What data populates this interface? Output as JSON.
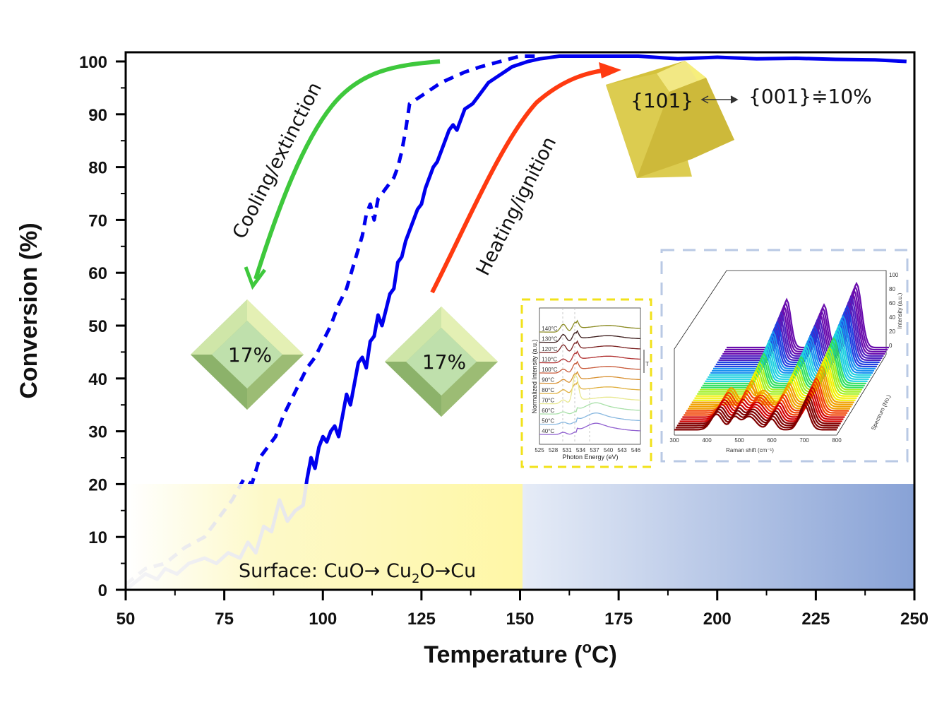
{
  "chart_data": {
    "type": "line",
    "title": "",
    "xlabel": "Temperature (°C)",
    "ylabel": "Conversion (%)",
    "xlim": [
      50,
      250
    ],
    "ylim": [
      0,
      100
    ],
    "xticks": [
      50,
      75,
      100,
      125,
      150,
      175,
      200,
      225,
      250
    ],
    "yticks": [
      0,
      10,
      20,
      30,
      40,
      50,
      60,
      70,
      80,
      90,
      100
    ],
    "grid": false,
    "legend": null,
    "series": [
      {
        "name": "Heating/ignition",
        "style": "solid",
        "color": "#0000ee",
        "x": [
          50,
          55,
          58,
          60,
          63,
          66,
          70,
          73,
          76,
          79,
          81,
          83,
          85,
          87,
          89,
          91,
          93,
          95,
          96,
          97,
          98,
          99,
          100,
          101,
          102,
          103,
          104,
          105,
          106,
          107,
          108,
          109,
          110,
          111,
          112,
          113,
          114,
          115,
          116,
          117,
          118,
          119,
          120,
          121,
          122,
          123,
          124,
          125,
          126,
          127,
          128,
          129,
          130,
          131,
          132,
          133,
          134,
          135,
          136,
          138,
          140,
          142,
          144,
          146,
          148,
          150,
          152,
          155,
          160,
          170,
          180,
          190,
          200,
          210,
          220,
          230,
          240,
          248
        ],
        "y": [
          0,
          3,
          2,
          4,
          3,
          5,
          6,
          5,
          7,
          6,
          9,
          7,
          12,
          11,
          17,
          13,
          15,
          16,
          21,
          25,
          23,
          27,
          29,
          28,
          30,
          31,
          29,
          33,
          37,
          35,
          39,
          43,
          44,
          42,
          47,
          48,
          52,
          50,
          53,
          56,
          57,
          62,
          63,
          66,
          68,
          70,
          72,
          73,
          76,
          78,
          80,
          81,
          83,
          85,
          87,
          88,
          87,
          89,
          91,
          92,
          94,
          96,
          97,
          98,
          99,
          99.5,
          100,
          100.5,
          101,
          101,
          101,
          100.5,
          100.8,
          100.5,
          100.6,
          100.4,
          100.3,
          100
        ]
      },
      {
        "name": "Cooling/extinction",
        "style": "dashed",
        "color": "#0000ee",
        "x": [
          50,
          55,
          60,
          65,
          70,
          74,
          77,
          80,
          82,
          84,
          86,
          88,
          90,
          92,
          94,
          96,
          98,
          100,
          102,
          104,
          106,
          108,
          110,
          111,
          112,
          113,
          114,
          116,
          118,
          119,
          120,
          121,
          122,
          124,
          126,
          128,
          130,
          133,
          136,
          140,
          145,
          150,
          155
        ],
        "y": [
          1,
          4,
          5,
          8,
          10,
          14,
          17,
          21,
          20,
          25,
          27,
          29,
          33,
          36,
          39,
          42,
          44,
          47,
          50,
          54,
          57,
          62,
          67,
          71,
          73,
          70,
          74,
          76,
          78,
          80,
          83,
          87,
          92,
          93,
          94,
          95,
          96,
          97,
          98,
          99,
          100,
          101,
          101
        ]
      }
    ],
    "regions": [
      {
        "label": "Surface: CuO→ Cu₂O→Cu",
        "x_range": [
          50,
          150
        ],
        "y_range": [
          0,
          20
        ],
        "color": "#fff7a8"
      },
      {
        "label": "",
        "x_range": [
          150,
          250
        ],
        "y_range": [
          0,
          20
        ],
        "color": "#8aa3d8"
      }
    ],
    "annotations": [
      {
        "text": "Cooling/extinction",
        "arrow_color": "#3ec83c",
        "direction": "down-left"
      },
      {
        "text": "Heating/ignition",
        "arrow_color": "#ff3a10",
        "direction": "up-right"
      },
      {
        "text": "17%",
        "shape": "green-truncated-pyramid",
        "position": "near-cooling-arrow-head"
      },
      {
        "text": "17%",
        "shape": "green-truncated-pyramid",
        "position": "near-heating-arrow-tail"
      },
      {
        "text": "{101}",
        "shape": "yellow-pyramid",
        "position": "near-heating-arrow-head"
      },
      {
        "text": "{001}≑10%",
        "linked_to": "{101}"
      }
    ]
  },
  "labels": {
    "y_axis": "Conversion (%)",
    "x_axis_main": "Temperature (",
    "x_axis_deg": "o",
    "x_axis_end": "C)",
    "cooling": "Cooling/extinction",
    "heating": "Heating/ignition",
    "pyr1": "17%",
    "pyr2": "17%",
    "facet101": "{101}",
    "facet001": "{001}≑10%",
    "surface_prefix": "Surface: CuO→ Cu",
    "surface_sub": "2",
    "surface_suffix": "O→Cu"
  },
  "inset_xps": {
    "xlabel": "Photon Energy (eV)",
    "ylabel": "Normalized Intensity (a.u.)",
    "xticks": [
      "525",
      "528",
      "531",
      "534",
      "537",
      "540",
      "543",
      "546"
    ],
    "temps": [
      "140°C",
      "130°C",
      "120°C",
      "110°C",
      "100°C",
      "90°C",
      "80°C",
      "70°C",
      "60°C",
      "50°C",
      "40°C"
    ],
    "colors": [
      "#8a8a20",
      "#3a1a1a",
      "#7a2020",
      "#b03030",
      "#c85a3a",
      "#d89030",
      "#e0b040",
      "#e8e890",
      "#a8e0a8",
      "#88b8e0",
      "#9060d0"
    ],
    "t_label": "T"
  },
  "inset_raman": {
    "xlabel": "Raman shift (cm⁻¹)",
    "zlabel": "Intensity (a.u.)",
    "ylabel": "Spectrum (No.)",
    "xticks": [
      "300",
      "400",
      "500",
      "600",
      "700",
      "800"
    ],
    "zticks": [
      "0",
      "20",
      "40",
      "60",
      "80",
      "100"
    ]
  }
}
